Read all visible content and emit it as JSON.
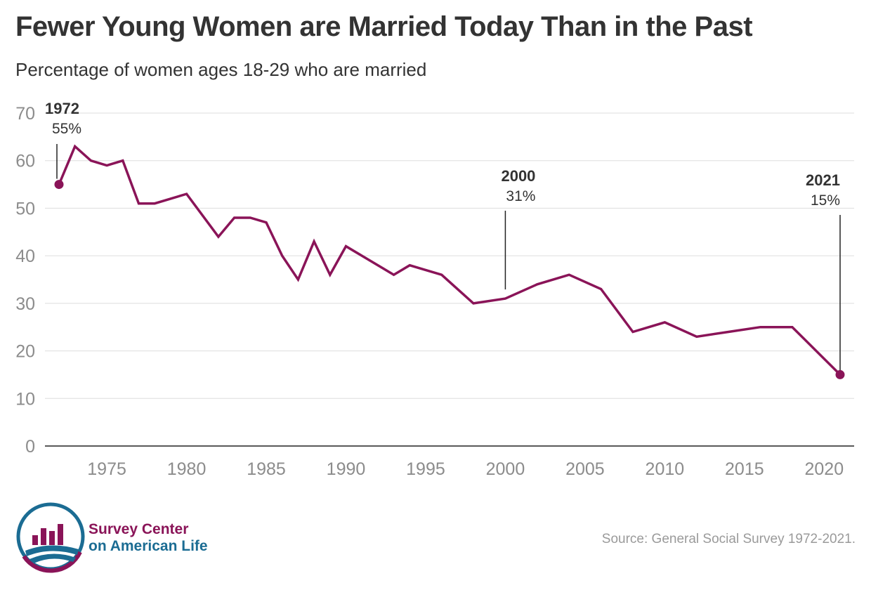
{
  "header": {
    "title": "Fewer Young Women are Married Today Than in the Past",
    "subtitle": "Percentage of women ages 18-29 who are married"
  },
  "footer": {
    "source": "Source: General Social Survey 1972-2021.",
    "logo_line1": "Survey Center",
    "logo_line2": "on American Life",
    "logo_icon": "survey-center-logo-icon"
  },
  "colors": {
    "line": "#8a1458",
    "grid": "#dddddd",
    "axis_text": "#8c8c8c",
    "annotation": "#333333",
    "logo_maroon": "#8a1458",
    "logo_blue": "#1b6c93"
  },
  "chart_data": {
    "type": "line",
    "title": "Fewer Young Women are Married Today Than in the Past",
    "subtitle": "Percentage of women ages 18-29 who are married",
    "xlabel": "",
    "ylabel": "",
    "xlim": [
      1972,
      2021
    ],
    "ylim": [
      0,
      70
    ],
    "grid": true,
    "x_ticks": [
      1975,
      1980,
      1985,
      1990,
      1995,
      2000,
      2005,
      2010,
      2015,
      2020
    ],
    "y_ticks": [
      0,
      10,
      20,
      30,
      40,
      50,
      60,
      70
    ],
    "x": [
      1972,
      1973,
      1974,
      1975,
      1976,
      1977,
      1978,
      1980,
      1982,
      1983,
      1984,
      1985,
      1986,
      1987,
      1988,
      1989,
      1990,
      1991,
      1993,
      1994,
      1996,
      1998,
      2000,
      2002,
      2004,
      2006,
      2008,
      2010,
      2012,
      2014,
      2016,
      2018,
      2021
    ],
    "series": [
      {
        "values": [
          55,
          63,
          60,
          59,
          60,
          51,
          51,
          53,
          44,
          48,
          48,
          47,
          40,
          35,
          43,
          36,
          42,
          40,
          36,
          38,
          36,
          30,
          31,
          34,
          36,
          33,
          24,
          26,
          23,
          24,
          25,
          25,
          15
        ]
      }
    ],
    "annotations": [
      {
        "x": 1972,
        "y": 55,
        "label_year": "1972",
        "label_value": "55%",
        "marker": true
      },
      {
        "x": 2000,
        "y": 31,
        "label_year": "2000",
        "label_value": "31%",
        "marker": false
      },
      {
        "x": 2021,
        "y": 15,
        "label_year": "2021",
        "label_value": "15%",
        "marker": true
      }
    ]
  }
}
